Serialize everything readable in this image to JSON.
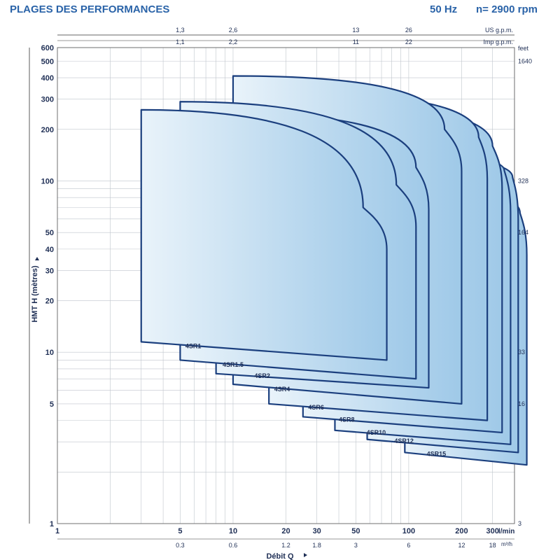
{
  "header": {
    "title": "PLAGES DES PERFORMANCES",
    "frequency": "50 Hz",
    "speed": "n= 2900 rpm"
  },
  "colors": {
    "outline": "#1b3f7e",
    "header": "#2a63a8",
    "grid": "#bfc5cc",
    "fill_light": "#e9f3fa",
    "fill_dark": "#9fc9e8"
  },
  "chart_data": {
    "type": "area",
    "title": "",
    "xlabel": "Débit Q",
    "ylabel": "HMT H (mètres)",
    "x_scale": "log",
    "y_scale": "log",
    "xlim": [
      1,
      400
    ],
    "ylim": [
      1,
      600
    ],
    "grid": true,
    "x_unit_label": "l/min",
    "m3h_unit_label": "m³/h",
    "us_gpm_label": "US g.p.m.",
    "imp_gpm_label": "Imp g.p.m.",
    "feet_label": "feet",
    "x_ticks": [
      1,
      5,
      10,
      20,
      30,
      50,
      100,
      200,
      300
    ],
    "x_tick_labels": [
      "1",
      "5",
      "10",
      "20",
      "30",
      "50",
      "100",
      "200",
      "300"
    ],
    "y_ticks": [
      1,
      5,
      10,
      20,
      30,
      40,
      50,
      100,
      200,
      300,
      400,
      500,
      600
    ],
    "y_tick_labels": [
      "1",
      "5",
      "10",
      "20",
      "30",
      "40",
      "50",
      "100",
      "200",
      "300",
      "400",
      "500",
      "600"
    ],
    "m3h_ticks": [
      {
        "lmin": 5,
        "label": "0.3"
      },
      {
        "lmin": 10,
        "label": "0.6"
      },
      {
        "lmin": 20,
        "label": "1.2"
      },
      {
        "lmin": 30,
        "label": "1.8"
      },
      {
        "lmin": 50,
        "label": "3"
      },
      {
        "lmin": 100,
        "label": "6"
      },
      {
        "lmin": 200,
        "label": "12"
      },
      {
        "lmin": 300,
        "label": "18"
      }
    ],
    "us_gpm_ticks": [
      {
        "lmin": 5,
        "label": "1,3"
      },
      {
        "lmin": 10,
        "label": "2,6"
      },
      {
        "lmin": 50,
        "label": "13"
      },
      {
        "lmin": 100,
        "label": "26"
      }
    ],
    "imp_gpm_ticks": [
      {
        "lmin": 5,
        "label": "1,1"
      },
      {
        "lmin": 10,
        "label": "2,2"
      },
      {
        "lmin": 50,
        "label": "11"
      },
      {
        "lmin": 100,
        "label": "22"
      }
    ],
    "feet_ticks": [
      {
        "m": 1,
        "label": "3"
      },
      {
        "m": 5,
        "label": "16"
      },
      {
        "m": 10,
        "label": "33"
      },
      {
        "m": 50,
        "label": "164"
      },
      {
        "m": 100,
        "label": "328"
      },
      {
        "m": 500,
        "label": "1640"
      }
    ],
    "series": [
      {
        "name": "4SR1",
        "q_min": 3,
        "q_max": 75,
        "h_top_left": 260,
        "h_bottom_left": 11.5,
        "h_bottom_right": 9,
        "knee_q": 55,
        "knee_h": 70
      },
      {
        "name": "4SR1.5",
        "q_min": 5,
        "q_max": 110,
        "h_top_left": 290,
        "h_bottom_left": 9,
        "h_bottom_right": 7,
        "knee_q": 85,
        "knee_h": 95
      },
      {
        "name": "4SR2",
        "q_min": 8,
        "q_max": 130,
        "h_top_left": 250,
        "h_bottom_left": 7.5,
        "h_bottom_right": 6.2,
        "knee_q": 110,
        "knee_h": 120
      },
      {
        "name": "4SR4",
        "q_min": 10,
        "q_max": 200,
        "h_top_left": 410,
        "h_bottom_left": 6.5,
        "h_bottom_right": 5,
        "knee_q": 160,
        "knee_h": 200
      },
      {
        "name": "4SR6",
        "q_min": 16,
        "q_max": 280,
        "h_top_left": 330,
        "h_bottom_left": 5,
        "h_bottom_right": 4,
        "knee_q": 250,
        "knee_h": 180
      },
      {
        "name": "4SR8",
        "q_min": 25,
        "q_max": 340,
        "h_top_left": 280,
        "h_bottom_left": 4.2,
        "h_bottom_right": 3.4,
        "knee_q": 300,
        "knee_h": 160
      },
      {
        "name": "4SR10",
        "q_min": 38,
        "q_max": 380,
        "h_top_left": 150,
        "h_bottom_left": 3.5,
        "h_bottom_right": 2.9,
        "knee_q": 350,
        "knee_h": 115
      },
      {
        "name": "4SR12",
        "q_min": 58,
        "q_max": 420,
        "h_top_left": 140,
        "h_bottom_left": 3.1,
        "h_bottom_right": 2.6,
        "knee_q": 390,
        "knee_h": 105
      },
      {
        "name": "4SR15",
        "q_min": 95,
        "q_max": 470,
        "h_top_left": 90,
        "h_bottom_left": 2.6,
        "h_bottom_right": 2.2,
        "knee_q": 430,
        "knee_h": 65
      }
    ]
  }
}
